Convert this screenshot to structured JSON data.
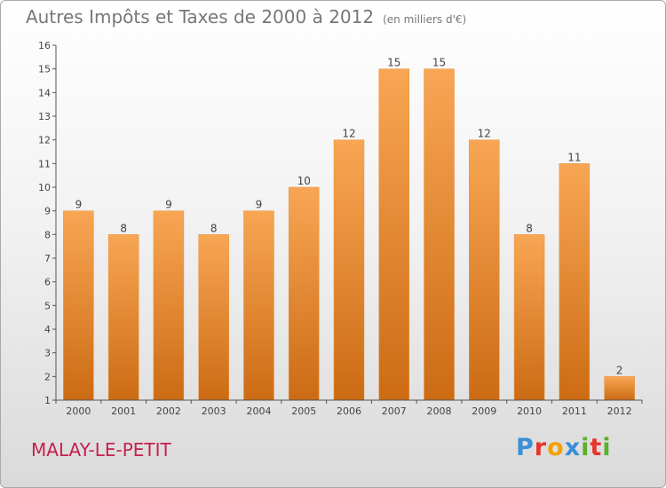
{
  "header": {
    "title": "Autres Impôts et Taxes de 2000 à 2012",
    "unit": "(en milliers d'€)"
  },
  "footer": {
    "city": "MALAY-LE-PETIT",
    "brand_letters": [
      "P",
      "r",
      "o",
      "x",
      "i",
      "t",
      "i"
    ],
    "brand_colors": [
      "#3a8fd6",
      "#e8342b",
      "#f2a100",
      "#3a8fd6",
      "#5bb02e",
      "#e8342b",
      "#5bb02e"
    ]
  },
  "colors": {
    "bar_top": "#f8a654",
    "bar_bottom": "#cc6b14",
    "axis": "#555555",
    "text": "#444444"
  },
  "chart_data": {
    "type": "bar",
    "title": "Autres Impôts et Taxes de 2000 à 2012",
    "categories": [
      "2000",
      "2001",
      "2002",
      "2003",
      "2004",
      "2005",
      "2006",
      "2007",
      "2008",
      "2009",
      "2010",
      "2011",
      "2012"
    ],
    "values": [
      9,
      8,
      9,
      8,
      9,
      10,
      12,
      15,
      15,
      12,
      8,
      11,
      2
    ],
    "data_labels": [
      "9",
      "8",
      "9",
      "8",
      "9",
      "10",
      "12",
      "15",
      "15",
      "12",
      "8",
      "11",
      "2"
    ],
    "y_ticks": [
      "1",
      "2",
      "3",
      "4",
      "5",
      "6",
      "7",
      "8",
      "9",
      "10",
      "11",
      "12",
      "13",
      "14",
      "15",
      "16"
    ],
    "ylim": [
      1,
      16
    ],
    "grid": false,
    "legend": "none"
  }
}
